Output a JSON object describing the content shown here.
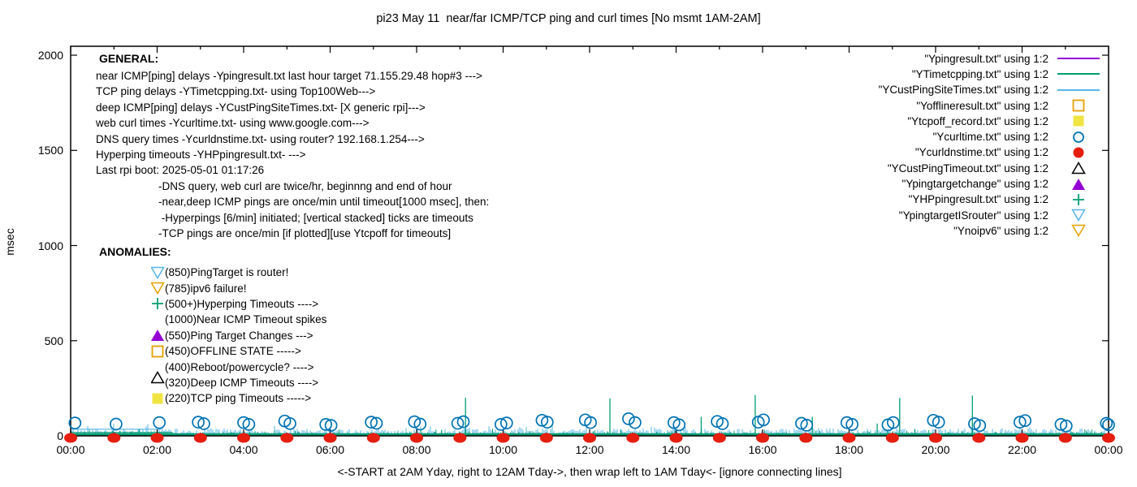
{
  "title": "pi23 May 11  near/far ICMP/TCP ping and curl times [No msmt 1AM-2AM]",
  "colors": {
    "purple": "#9400d3",
    "green": "#009e73",
    "skyblue": "#56b4e9",
    "orange": "#e69f00",
    "yellow": "#f0e442",
    "blue": "#0072b2",
    "red": "#e51e10",
    "black": "#000000"
  },
  "general": {
    "heading": "GENERAL:",
    "lines": [
      "near ICMP[ping] delays -Ypingresult.txt last hour target 71.155.29.48 hop#3 --->",
      "TCP ping delays -YTimetcpping.txt- using Top100Web--->",
      "deep ICMP[ping] delays -YCustPingSiteTimes.txt- [X generic rpi]--->",
      "web curl times -Ycurltime.txt- using www.google.com--->",
      "DNS query times -Ycurldnstime.txt- using router? 192.168.1.254--->",
      "Hyperping timeouts -YHPpingresult.txt- --->",
      "Last rpi boot: 2025-05-01 01:17:26"
    ],
    "sub_lines": [
      "-DNS query, web curl are twice/hr, beginnng and end of hour",
      "-near,deep ICMP pings are once/min until timeout[1000 msec], then:",
      " -Hyperpings [6/min] initiated; [vertical stacked] ticks are timeouts",
      "-TCP pings are once/min [if plotted][use Ytcpoff for timeouts]"
    ]
  },
  "anomalies": {
    "heading": "ANOMALIES:",
    "items": [
      {
        "marker": "tri-down-open",
        "color": "#56b4e9",
        "label": "(850)PingTarget is router!"
      },
      {
        "marker": "tri-down-open",
        "color": "#e69f00",
        "label": "(785)ipv6 failure!"
      },
      {
        "marker": "plus",
        "color": "#009e73",
        "label": "(500+)Hyperping Timeouts ---->"
      },
      {
        "marker": "none",
        "color": "",
        "label": "(1000)Near ICMP Timeout spikes"
      },
      {
        "marker": "tri-up-filled",
        "color": "#9400d3",
        "label": "(550)Ping Target Changes --->"
      },
      {
        "marker": "square-open",
        "color": "#e69f00",
        "label": "(450)OFFLINE STATE ----->"
      },
      {
        "marker": "none",
        "color": "",
        "label": "(400)Reboot/powercycle? ---->"
      },
      {
        "marker": "tri-up-open",
        "color": "#000000",
        "label": "(320)Deep ICMP Timeouts ---->"
      },
      {
        "marker": "square-filled",
        "color": "#f0e442",
        "label": "(220)TCP ping Timeouts ----->"
      }
    ]
  },
  "legend": {
    "items": [
      {
        "label": "\"Ypingresult.txt\" using 1:2",
        "marker": "line",
        "color": "#9400d3"
      },
      {
        "label": "\"YTimetcpping.txt\" using 1:2",
        "marker": "line",
        "color": "#009e73"
      },
      {
        "label": "\"YCustPingSiteTimes.txt\" using 1:2",
        "marker": "line",
        "color": "#56b4e9"
      },
      {
        "label": "\"Yofflineresult.txt\" using 1:2",
        "marker": "square-open",
        "color": "#e69f00"
      },
      {
        "label": "\"Ytcpoff_record.txt\" using 1:2",
        "marker": "square-filled",
        "color": "#f0e442"
      },
      {
        "label": "\"Ycurltime.txt\" using 1:2",
        "marker": "circle-open",
        "color": "#0072b2"
      },
      {
        "label": "\"Ycurldnstime.txt\" using 1:2",
        "marker": "circle-filled",
        "color": "#e51e10"
      },
      {
        "label": "\"YCustPingTimeout.txt\" using 1:2",
        "marker": "tri-up-open",
        "color": "#000000"
      },
      {
        "label": "\"Ypingtargetchange\" using 1:2",
        "marker": "tri-up-filled",
        "color": "#9400d3"
      },
      {
        "label": "\"YHPpingresult.txt\" using 1:2",
        "marker": "plus",
        "color": "#009e73"
      },
      {
        "label": "\"YpingtargetISrouter\" using 1:2",
        "marker": "tri-down-open",
        "color": "#56b4e9"
      },
      {
        "label": "\"Ynoipv6\" using 1:2",
        "marker": "tri-down-open",
        "color": "#e69f00"
      }
    ]
  },
  "chart_data": {
    "type": "line",
    "title": "pi23 May 11  near/far ICMP/TCP ping and curl times [No msmt 1AM-2AM]",
    "xlabel": "<-START at 2AM Yday, right to 12AM Tday->, then wrap left to 1AM Tday<- [ignore connecting lines]",
    "ylabel": "msec",
    "ylim": [
      0,
      2050
    ],
    "x_hours_range": [
      0,
      24
    ],
    "x_ticks": [
      "00:00",
      "02:00",
      "04:00",
      "06:00",
      "08:00",
      "10:00",
      "12:00",
      "14:00",
      "16:00",
      "18:00",
      "20:00",
      "22:00",
      "00:00"
    ],
    "y_ticks": [
      0,
      500,
      1000,
      1500,
      2000
    ],
    "grid": false,
    "legend_position": "top-right",
    "series": [
      {
        "name": "Ypingresult.txt",
        "style": "line",
        "color": "#9400d3",
        "content": "near ICMP ping delays, low band near 0-30 msec"
      },
      {
        "name": "YTimetcpping.txt",
        "style": "line",
        "color": "#009e73",
        "content": "TCP ping delays, dense spikes 0-35 msec with timeout spikes"
      },
      {
        "name": "YCustPingSiteTimes.txt",
        "style": "line",
        "color": "#56b4e9",
        "content": "deep ICMP ping delays, spikes 5-70 msec"
      },
      {
        "name": "Ycurltime.txt",
        "style": "points-circle-open",
        "color": "#0072b2",
        "content": "web curl times twice per hour, 50-90 msec"
      },
      {
        "name": "Ycurldnstime.txt",
        "style": "points-circle-filled",
        "color": "#e51e10",
        "content": "DNS query times each hour, ~0 msec"
      }
    ],
    "noise_bands": [
      {
        "name": "deep ICMP ping grass",
        "color": "#56b4e9",
        "range_msec": [
          5,
          68
        ]
      },
      {
        "name": "near ICMP / TCP ping grass",
        "color": "#009e73",
        "range_msec": [
          2,
          39
        ]
      }
    ],
    "bridge_lines": [
      {
        "color": "#56b4e9",
        "v_msec": 35,
        "t_hours": [
          0,
          2.1
        ]
      },
      {
        "color": "#009e73",
        "v_msec": 18,
        "t_hours": [
          0,
          2.35
        ]
      }
    ],
    "green_timeout_spikes": [
      {
        "t": 9.13,
        "v": 200
      },
      {
        "t": 12.47,
        "v": 196
      },
      {
        "t": 14.58,
        "v": 100
      },
      {
        "t": 15.83,
        "v": 215
      },
      {
        "t": 17.15,
        "v": 100
      },
      {
        "t": 18.65,
        "v": 65
      },
      {
        "t": 19.17,
        "v": 200
      },
      {
        "t": 20.85,
        "v": 212
      }
    ],
    "curl_time_points": [
      {
        "t": 0.1,
        "v": 68
      },
      {
        "t": 1.05,
        "v": 62
      },
      {
        "t": 2.05,
        "v": 70
      },
      {
        "t": 2.95,
        "v": 72
      },
      {
        "t": 3.08,
        "v": 64
      },
      {
        "t": 4.0,
        "v": 70
      },
      {
        "t": 4.12,
        "v": 60
      },
      {
        "t": 4.95,
        "v": 78
      },
      {
        "t": 5.07,
        "v": 65
      },
      {
        "t": 5.9,
        "v": 60
      },
      {
        "t": 6.02,
        "v": 55
      },
      {
        "t": 6.95,
        "v": 72
      },
      {
        "t": 7.07,
        "v": 66
      },
      {
        "t": 7.95,
        "v": 74
      },
      {
        "t": 8.08,
        "v": 62
      },
      {
        "t": 8.95,
        "v": 66
      },
      {
        "t": 9.08,
        "v": 74
      },
      {
        "t": 9.95,
        "v": 60
      },
      {
        "t": 10.08,
        "v": 68
      },
      {
        "t": 10.9,
        "v": 82
      },
      {
        "t": 11.02,
        "v": 72
      },
      {
        "t": 11.9,
        "v": 84
      },
      {
        "t": 12.02,
        "v": 70
      },
      {
        "t": 12.9,
        "v": 90
      },
      {
        "t": 13.05,
        "v": 70
      },
      {
        "t": 13.95,
        "v": 70
      },
      {
        "t": 14.07,
        "v": 58
      },
      {
        "t": 14.95,
        "v": 76
      },
      {
        "t": 15.07,
        "v": 64
      },
      {
        "t": 15.9,
        "v": 72
      },
      {
        "t": 16.02,
        "v": 84
      },
      {
        "t": 16.9,
        "v": 66
      },
      {
        "t": 17.02,
        "v": 56
      },
      {
        "t": 17.95,
        "v": 70
      },
      {
        "t": 18.07,
        "v": 60
      },
      {
        "t": 18.9,
        "v": 58
      },
      {
        "t": 19.02,
        "v": 70
      },
      {
        "t": 19.95,
        "v": 82
      },
      {
        "t": 20.07,
        "v": 72
      },
      {
        "t": 20.9,
        "v": 64
      },
      {
        "t": 21.02,
        "v": 54
      },
      {
        "t": 21.95,
        "v": 72
      },
      {
        "t": 22.07,
        "v": 80
      },
      {
        "t": 22.9,
        "v": 60
      },
      {
        "t": 23.02,
        "v": 52
      },
      {
        "t": 23.95,
        "v": 66
      },
      {
        "t": 24.0,
        "v": 58
      }
    ],
    "dns_query_dot_hours": [
      0,
      1,
      2,
      3,
      4,
      5,
      6,
      7,
      8,
      9,
      10,
      11,
      12,
      13,
      14,
      15,
      16,
      17,
      18,
      19,
      20,
      21,
      22,
      23,
      24
    ],
    "dns_query_value_msec": 0
  }
}
